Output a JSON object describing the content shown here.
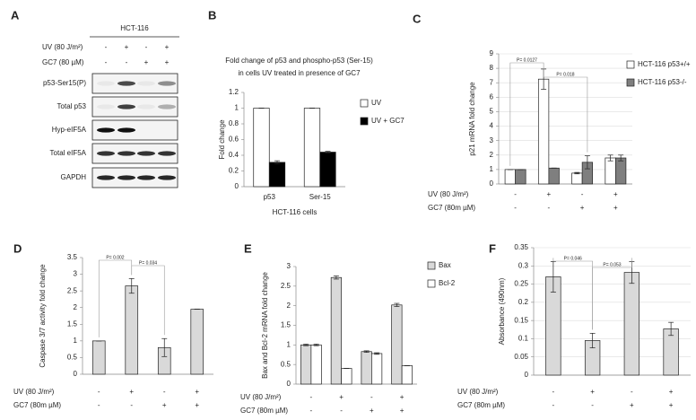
{
  "blot": {
    "panel": "A",
    "cell_line": "HCT-116",
    "conditions": [
      {
        "label": "UV  (80 J/m²)",
        "signs": [
          "-",
          "+",
          "-",
          "+"
        ]
      },
      {
        "label": "GC7 (80 µM)",
        "signs": [
          "-",
          "-",
          "+",
          "+"
        ]
      }
    ],
    "bands": [
      "p53-Ser15(P)",
      "Total p53",
      "Hyp-eIF5A",
      "Total eIF5A",
      "GAPDH"
    ]
  },
  "chart_data": [
    {
      "type": "bar",
      "panel": "B",
      "title": [
        "Fold change of p53 and phospho-p53 (Ser-15)",
        "in cells UV treated in presence of GC7"
      ],
      "ylabel": "Fold change",
      "xlabel": "HCT-116 cells",
      "categories": [
        "p53",
        "Ser-15"
      ],
      "series": [
        {
          "name": "UV",
          "color": "#ffffff",
          "values": [
            1,
            1
          ],
          "errors": [
            0,
            0
          ]
        },
        {
          "name": "UV + GC7",
          "color": "#000000",
          "values": [
            0.31,
            0.44
          ],
          "errors": [
            0.02,
            0.01
          ]
        }
      ],
      "ylim": [
        0,
        1.2
      ],
      "yticks": [
        0,
        0.2,
        0.4,
        0.6,
        0.8,
        1,
        1.2
      ],
      "grid": false,
      "legend": "right"
    },
    {
      "type": "bar",
      "panel": "C",
      "ylabel": "p21 mRNA fold change",
      "series": [
        {
          "name": "HCT-116 p53+/+",
          "color": "#ffffff",
          "values": [
            1,
            7.25,
            0.75,
            1.8
          ],
          "errors": [
            0,
            0.7,
            0.05,
            0.2
          ]
        },
        {
          "name": "HCT-116 p53-/-",
          "color": "#7f7f7f",
          "values": [
            1,
            1.1,
            1.5,
            1.8
          ],
          "errors": [
            0,
            0,
            0.45,
            0.2
          ]
        }
      ],
      "conditions": [
        {
          "label": "UV  (80 J/m²)",
          "signs": [
            "-",
            "+",
            "-",
            "+"
          ]
        },
        {
          "label": "GC7 (80m µM)",
          "signs": [
            "-",
            "-",
            "+",
            "+"
          ]
        }
      ],
      "annotations": [
        "P= 0.0127",
        "P= 0.018"
      ],
      "ylim": [
        0,
        9
      ],
      "yticks": [
        0,
        1,
        2,
        3,
        4,
        5,
        6,
        7,
        8,
        9
      ],
      "grid": true,
      "legend": "right"
    },
    {
      "type": "bar",
      "panel": "D",
      "ylabel": "Caspase 3/7 activity fold change",
      "values": [
        1,
        2.65,
        0.8,
        1.95
      ],
      "errors": [
        0,
        0.22,
        0.27,
        0
      ],
      "color": "#d9d9d9",
      "conditions": [
        {
          "label": "UV  (80 J/m²)",
          "signs": [
            "-",
            "+",
            "-",
            "+"
          ]
        },
        {
          "label": "GC7 (80m µM)",
          "signs": [
            "-",
            "-",
            "+",
            "+"
          ]
        }
      ],
      "annotations": [
        "P= 0.002",
        "P= 0.034"
      ],
      "ylim": [
        0,
        3.5
      ],
      "yticks": [
        0,
        0.5,
        1,
        1.5,
        2,
        2.5,
        3,
        3.5
      ],
      "grid": false
    },
    {
      "type": "bar",
      "panel": "E",
      "ylabel": "Bax and Bcl-2 mRNA fold change",
      "series": [
        {
          "name": "Bax",
          "color": "#d9d9d9",
          "values": [
            1,
            2.72,
            0.83,
            2.02
          ],
          "errors": [
            0.02,
            0.04,
            0.02,
            0.04
          ]
        },
        {
          "name": "Bcl-2",
          "color": "#ffffff",
          "values": [
            1,
            0.4,
            0.78,
            0.47
          ],
          "errors": [
            0.02,
            0,
            0.02,
            0
          ]
        }
      ],
      "conditions": [
        {
          "label": "UV  (80 J/m²)",
          "signs": [
            "-",
            "+",
            "-",
            "+"
          ]
        },
        {
          "label": "GC7 (80m µM)",
          "signs": [
            "-",
            "-",
            "+",
            "+"
          ]
        }
      ],
      "ylim": [
        0,
        3
      ],
      "yticks": [
        0,
        0.5,
        1,
        1.5,
        2,
        2.5,
        3
      ],
      "grid": false,
      "legend": "right"
    },
    {
      "type": "bar",
      "panel": "F",
      "ylabel": "Absorbance (490nm)",
      "values": [
        0.27,
        0.095,
        0.282,
        0.127
      ],
      "errors": [
        0.042,
        0.02,
        0.03,
        0.018
      ],
      "color": "#d9d9d9",
      "conditions": [
        {
          "label": "UV  (80 J/m²)",
          "signs": [
            "-",
            "+",
            "-",
            "+"
          ]
        },
        {
          "label": "GC7 (80m µM)",
          "signs": [
            "-",
            "-",
            "+",
            "+"
          ]
        }
      ],
      "annotations": [
        "P= 0.046",
        "P= 0.053"
      ],
      "ylim": [
        0,
        0.35
      ],
      "yticks": [
        0,
        0.05,
        0.1,
        0.15,
        0.2,
        0.25,
        0.3,
        0.35
      ],
      "grid": true
    }
  ]
}
